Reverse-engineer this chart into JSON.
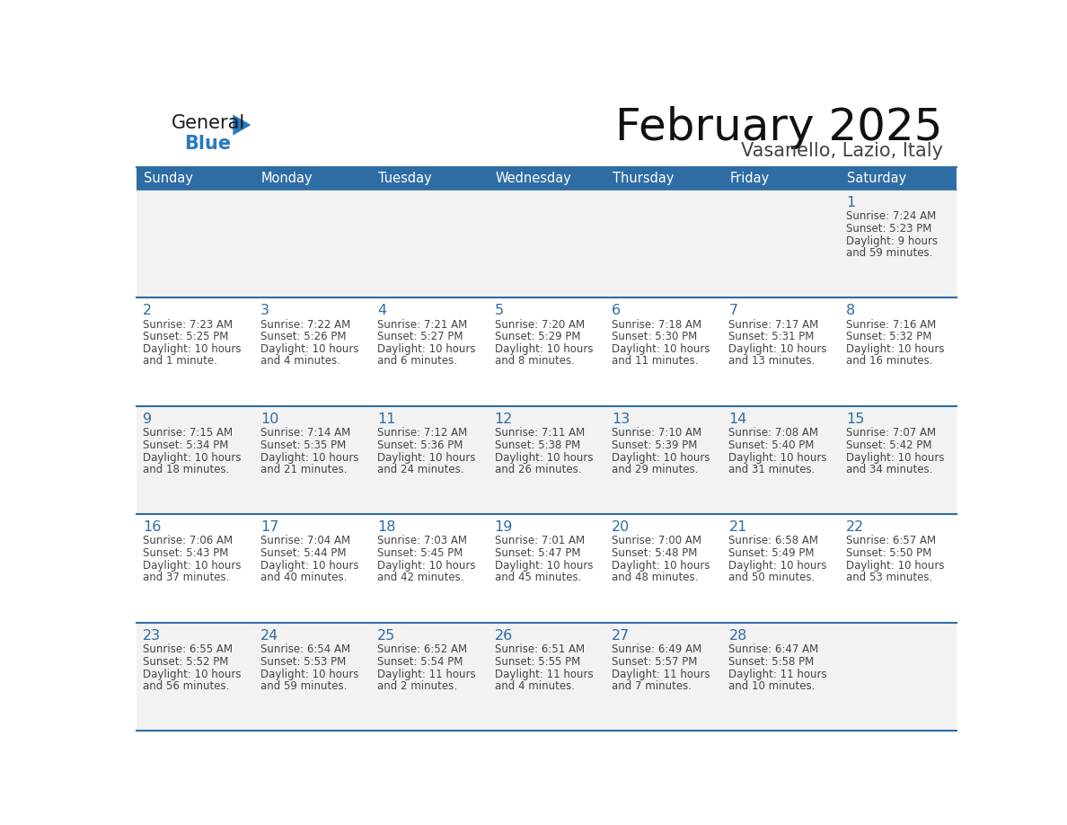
{
  "title": "February 2025",
  "subtitle": "Vasanello, Lazio, Italy",
  "header_bg": "#2E6DA4",
  "header_text": "#FFFFFF",
  "cell_bg_odd": "#F2F2F2",
  "cell_bg_even": "#FFFFFF",
  "day_names": [
    "Sunday",
    "Monday",
    "Tuesday",
    "Wednesday",
    "Thursday",
    "Friday",
    "Saturday"
  ],
  "day_number_color": "#2E6DA4",
  "text_color": "#444444",
  "line_color": "#2E6DA4",
  "logo_general_color": "#1a1a1a",
  "logo_blue_color": "#2879BE",
  "days": [
    {
      "date": 1,
      "col": 6,
      "row": 0,
      "sunrise": "7:24 AM",
      "sunset": "5:23 PM",
      "daylight_hours": 9,
      "daylight_mins": 59
    },
    {
      "date": 2,
      "col": 0,
      "row": 1,
      "sunrise": "7:23 AM",
      "sunset": "5:25 PM",
      "daylight_hours": 10,
      "daylight_mins": 1
    },
    {
      "date": 3,
      "col": 1,
      "row": 1,
      "sunrise": "7:22 AM",
      "sunset": "5:26 PM",
      "daylight_hours": 10,
      "daylight_mins": 4
    },
    {
      "date": 4,
      "col": 2,
      "row": 1,
      "sunrise": "7:21 AM",
      "sunset": "5:27 PM",
      "daylight_hours": 10,
      "daylight_mins": 6
    },
    {
      "date": 5,
      "col": 3,
      "row": 1,
      "sunrise": "7:20 AM",
      "sunset": "5:29 PM",
      "daylight_hours": 10,
      "daylight_mins": 8
    },
    {
      "date": 6,
      "col": 4,
      "row": 1,
      "sunrise": "7:18 AM",
      "sunset": "5:30 PM",
      "daylight_hours": 10,
      "daylight_mins": 11
    },
    {
      "date": 7,
      "col": 5,
      "row": 1,
      "sunrise": "7:17 AM",
      "sunset": "5:31 PM",
      "daylight_hours": 10,
      "daylight_mins": 13
    },
    {
      "date": 8,
      "col": 6,
      "row": 1,
      "sunrise": "7:16 AM",
      "sunset": "5:32 PM",
      "daylight_hours": 10,
      "daylight_mins": 16
    },
    {
      "date": 9,
      "col": 0,
      "row": 2,
      "sunrise": "7:15 AM",
      "sunset": "5:34 PM",
      "daylight_hours": 10,
      "daylight_mins": 18
    },
    {
      "date": 10,
      "col": 1,
      "row": 2,
      "sunrise": "7:14 AM",
      "sunset": "5:35 PM",
      "daylight_hours": 10,
      "daylight_mins": 21
    },
    {
      "date": 11,
      "col": 2,
      "row": 2,
      "sunrise": "7:12 AM",
      "sunset": "5:36 PM",
      "daylight_hours": 10,
      "daylight_mins": 24
    },
    {
      "date": 12,
      "col": 3,
      "row": 2,
      "sunrise": "7:11 AM",
      "sunset": "5:38 PM",
      "daylight_hours": 10,
      "daylight_mins": 26
    },
    {
      "date": 13,
      "col": 4,
      "row": 2,
      "sunrise": "7:10 AM",
      "sunset": "5:39 PM",
      "daylight_hours": 10,
      "daylight_mins": 29
    },
    {
      "date": 14,
      "col": 5,
      "row": 2,
      "sunrise": "7:08 AM",
      "sunset": "5:40 PM",
      "daylight_hours": 10,
      "daylight_mins": 31
    },
    {
      "date": 15,
      "col": 6,
      "row": 2,
      "sunrise": "7:07 AM",
      "sunset": "5:42 PM",
      "daylight_hours": 10,
      "daylight_mins": 34
    },
    {
      "date": 16,
      "col": 0,
      "row": 3,
      "sunrise": "7:06 AM",
      "sunset": "5:43 PM",
      "daylight_hours": 10,
      "daylight_mins": 37
    },
    {
      "date": 17,
      "col": 1,
      "row": 3,
      "sunrise": "7:04 AM",
      "sunset": "5:44 PM",
      "daylight_hours": 10,
      "daylight_mins": 40
    },
    {
      "date": 18,
      "col": 2,
      "row": 3,
      "sunrise": "7:03 AM",
      "sunset": "5:45 PM",
      "daylight_hours": 10,
      "daylight_mins": 42
    },
    {
      "date": 19,
      "col": 3,
      "row": 3,
      "sunrise": "7:01 AM",
      "sunset": "5:47 PM",
      "daylight_hours": 10,
      "daylight_mins": 45
    },
    {
      "date": 20,
      "col": 4,
      "row": 3,
      "sunrise": "7:00 AM",
      "sunset": "5:48 PM",
      "daylight_hours": 10,
      "daylight_mins": 48
    },
    {
      "date": 21,
      "col": 5,
      "row": 3,
      "sunrise": "6:58 AM",
      "sunset": "5:49 PM",
      "daylight_hours": 10,
      "daylight_mins": 50
    },
    {
      "date": 22,
      "col": 6,
      "row": 3,
      "sunrise": "6:57 AM",
      "sunset": "5:50 PM",
      "daylight_hours": 10,
      "daylight_mins": 53
    },
    {
      "date": 23,
      "col": 0,
      "row": 4,
      "sunrise": "6:55 AM",
      "sunset": "5:52 PM",
      "daylight_hours": 10,
      "daylight_mins": 56
    },
    {
      "date": 24,
      "col": 1,
      "row": 4,
      "sunrise": "6:54 AM",
      "sunset": "5:53 PM",
      "daylight_hours": 10,
      "daylight_mins": 59
    },
    {
      "date": 25,
      "col": 2,
      "row": 4,
      "sunrise": "6:52 AM",
      "sunset": "5:54 PM",
      "daylight_hours": 11,
      "daylight_mins": 2
    },
    {
      "date": 26,
      "col": 3,
      "row": 4,
      "sunrise": "6:51 AM",
      "sunset": "5:55 PM",
      "daylight_hours": 11,
      "daylight_mins": 4
    },
    {
      "date": 27,
      "col": 4,
      "row": 4,
      "sunrise": "6:49 AM",
      "sunset": "5:57 PM",
      "daylight_hours": 11,
      "daylight_mins": 7
    },
    {
      "date": 28,
      "col": 5,
      "row": 4,
      "sunrise": "6:47 AM",
      "sunset": "5:58 PM",
      "daylight_hours": 11,
      "daylight_mins": 10
    }
  ],
  "num_rows": 5,
  "num_cols": 7
}
